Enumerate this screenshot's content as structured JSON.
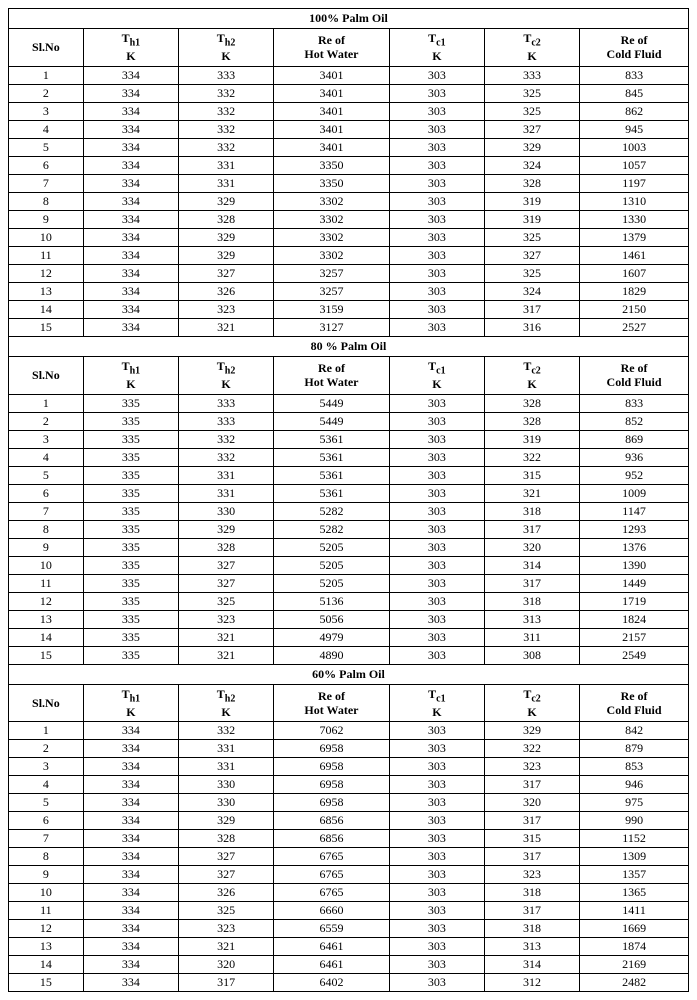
{
  "labels": {
    "slno": "Sl.No",
    "th1_top": "T",
    "th1_sub": "h1",
    "th2_top": "T",
    "th2_sub": "h2",
    "tc1_top": "T",
    "tc1_sub": "c1",
    "tc2_top": "T",
    "tc2_sub": "c2",
    "unitK": "K",
    "re_hot_l1": "Re of",
    "re_hot_l2": "Hot Water",
    "re_cold_l1": "Re of",
    "re_cold_l2": "Cold Fluid"
  },
  "sections": [
    {
      "title": "100% Palm Oil",
      "rows": [
        [
          1,
          334,
          333,
          3401,
          303,
          333,
          833
        ],
        [
          2,
          334,
          332,
          3401,
          303,
          325,
          845
        ],
        [
          3,
          334,
          332,
          3401,
          303,
          325,
          862
        ],
        [
          4,
          334,
          332,
          3401,
          303,
          327,
          945
        ],
        [
          5,
          334,
          332,
          3401,
          303,
          329,
          1003
        ],
        [
          6,
          334,
          331,
          3350,
          303,
          324,
          1057
        ],
        [
          7,
          334,
          331,
          3350,
          303,
          328,
          1197
        ],
        [
          8,
          334,
          329,
          3302,
          303,
          319,
          1310
        ],
        [
          9,
          334,
          328,
          3302,
          303,
          319,
          1330
        ],
        [
          10,
          334,
          329,
          3302,
          303,
          325,
          1379
        ],
        [
          11,
          334,
          329,
          3302,
          303,
          327,
          1461
        ],
        [
          12,
          334,
          327,
          3257,
          303,
          325,
          1607
        ],
        [
          13,
          334,
          326,
          3257,
          303,
          324,
          1829
        ],
        [
          14,
          334,
          323,
          3159,
          303,
          317,
          2150
        ],
        [
          15,
          334,
          321,
          3127,
          303,
          316,
          2527
        ]
      ]
    },
    {
      "title": "80 % Palm Oil",
      "rows": [
        [
          1,
          335,
          333,
          5449,
          303,
          328,
          833
        ],
        [
          2,
          335,
          333,
          5449,
          303,
          328,
          852
        ],
        [
          3,
          335,
          332,
          5361,
          303,
          319,
          869
        ],
        [
          4,
          335,
          332,
          5361,
          303,
          322,
          936
        ],
        [
          5,
          335,
          331,
          5361,
          303,
          315,
          952
        ],
        [
          6,
          335,
          331,
          5361,
          303,
          321,
          1009
        ],
        [
          7,
          335,
          330,
          5282,
          303,
          318,
          1147
        ],
        [
          8,
          335,
          329,
          5282,
          303,
          317,
          1293
        ],
        [
          9,
          335,
          328,
          5205,
          303,
          320,
          1376
        ],
        [
          10,
          335,
          327,
          5205,
          303,
          314,
          1390
        ],
        [
          11,
          335,
          327,
          5205,
          303,
          317,
          1449
        ],
        [
          12,
          335,
          325,
          5136,
          303,
          318,
          1719
        ],
        [
          13,
          335,
          323,
          5056,
          303,
          313,
          1824
        ],
        [
          14,
          335,
          321,
          4979,
          303,
          311,
          2157
        ],
        [
          15,
          335,
          321,
          4890,
          303,
          308,
          2549
        ]
      ]
    },
    {
      "title": "60% Palm Oil",
      "rows": [
        [
          1,
          334,
          332,
          7062,
          303,
          329,
          842
        ],
        [
          2,
          334,
          331,
          6958,
          303,
          322,
          879
        ],
        [
          3,
          334,
          331,
          6958,
          303,
          323,
          853
        ],
        [
          4,
          334,
          330,
          6958,
          303,
          317,
          946
        ],
        [
          5,
          334,
          330,
          6958,
          303,
          320,
          975
        ],
        [
          6,
          334,
          329,
          6856,
          303,
          317,
          990
        ],
        [
          7,
          334,
          328,
          6856,
          303,
          315,
          1152
        ],
        [
          8,
          334,
          327,
          6765,
          303,
          317,
          1309
        ],
        [
          9,
          334,
          327,
          6765,
          303,
          323,
          1357
        ],
        [
          10,
          334,
          326,
          6765,
          303,
          318,
          1365
        ],
        [
          11,
          334,
          325,
          6660,
          303,
          317,
          1411
        ],
        [
          12,
          334,
          323,
          6559,
          303,
          318,
          1669
        ],
        [
          13,
          334,
          321,
          6461,
          303,
          313,
          1874
        ],
        [
          14,
          334,
          320,
          6461,
          303,
          314,
          2169
        ],
        [
          15,
          334,
          317,
          6402,
          303,
          312,
          2482
        ]
      ]
    }
  ],
  "style": {
    "font_family": "Times New Roman",
    "font_size_pt": 9,
    "header_font_weight": "bold",
    "border_color": "#000000",
    "background_color": "#ffffff",
    "text_color": "#000000"
  }
}
